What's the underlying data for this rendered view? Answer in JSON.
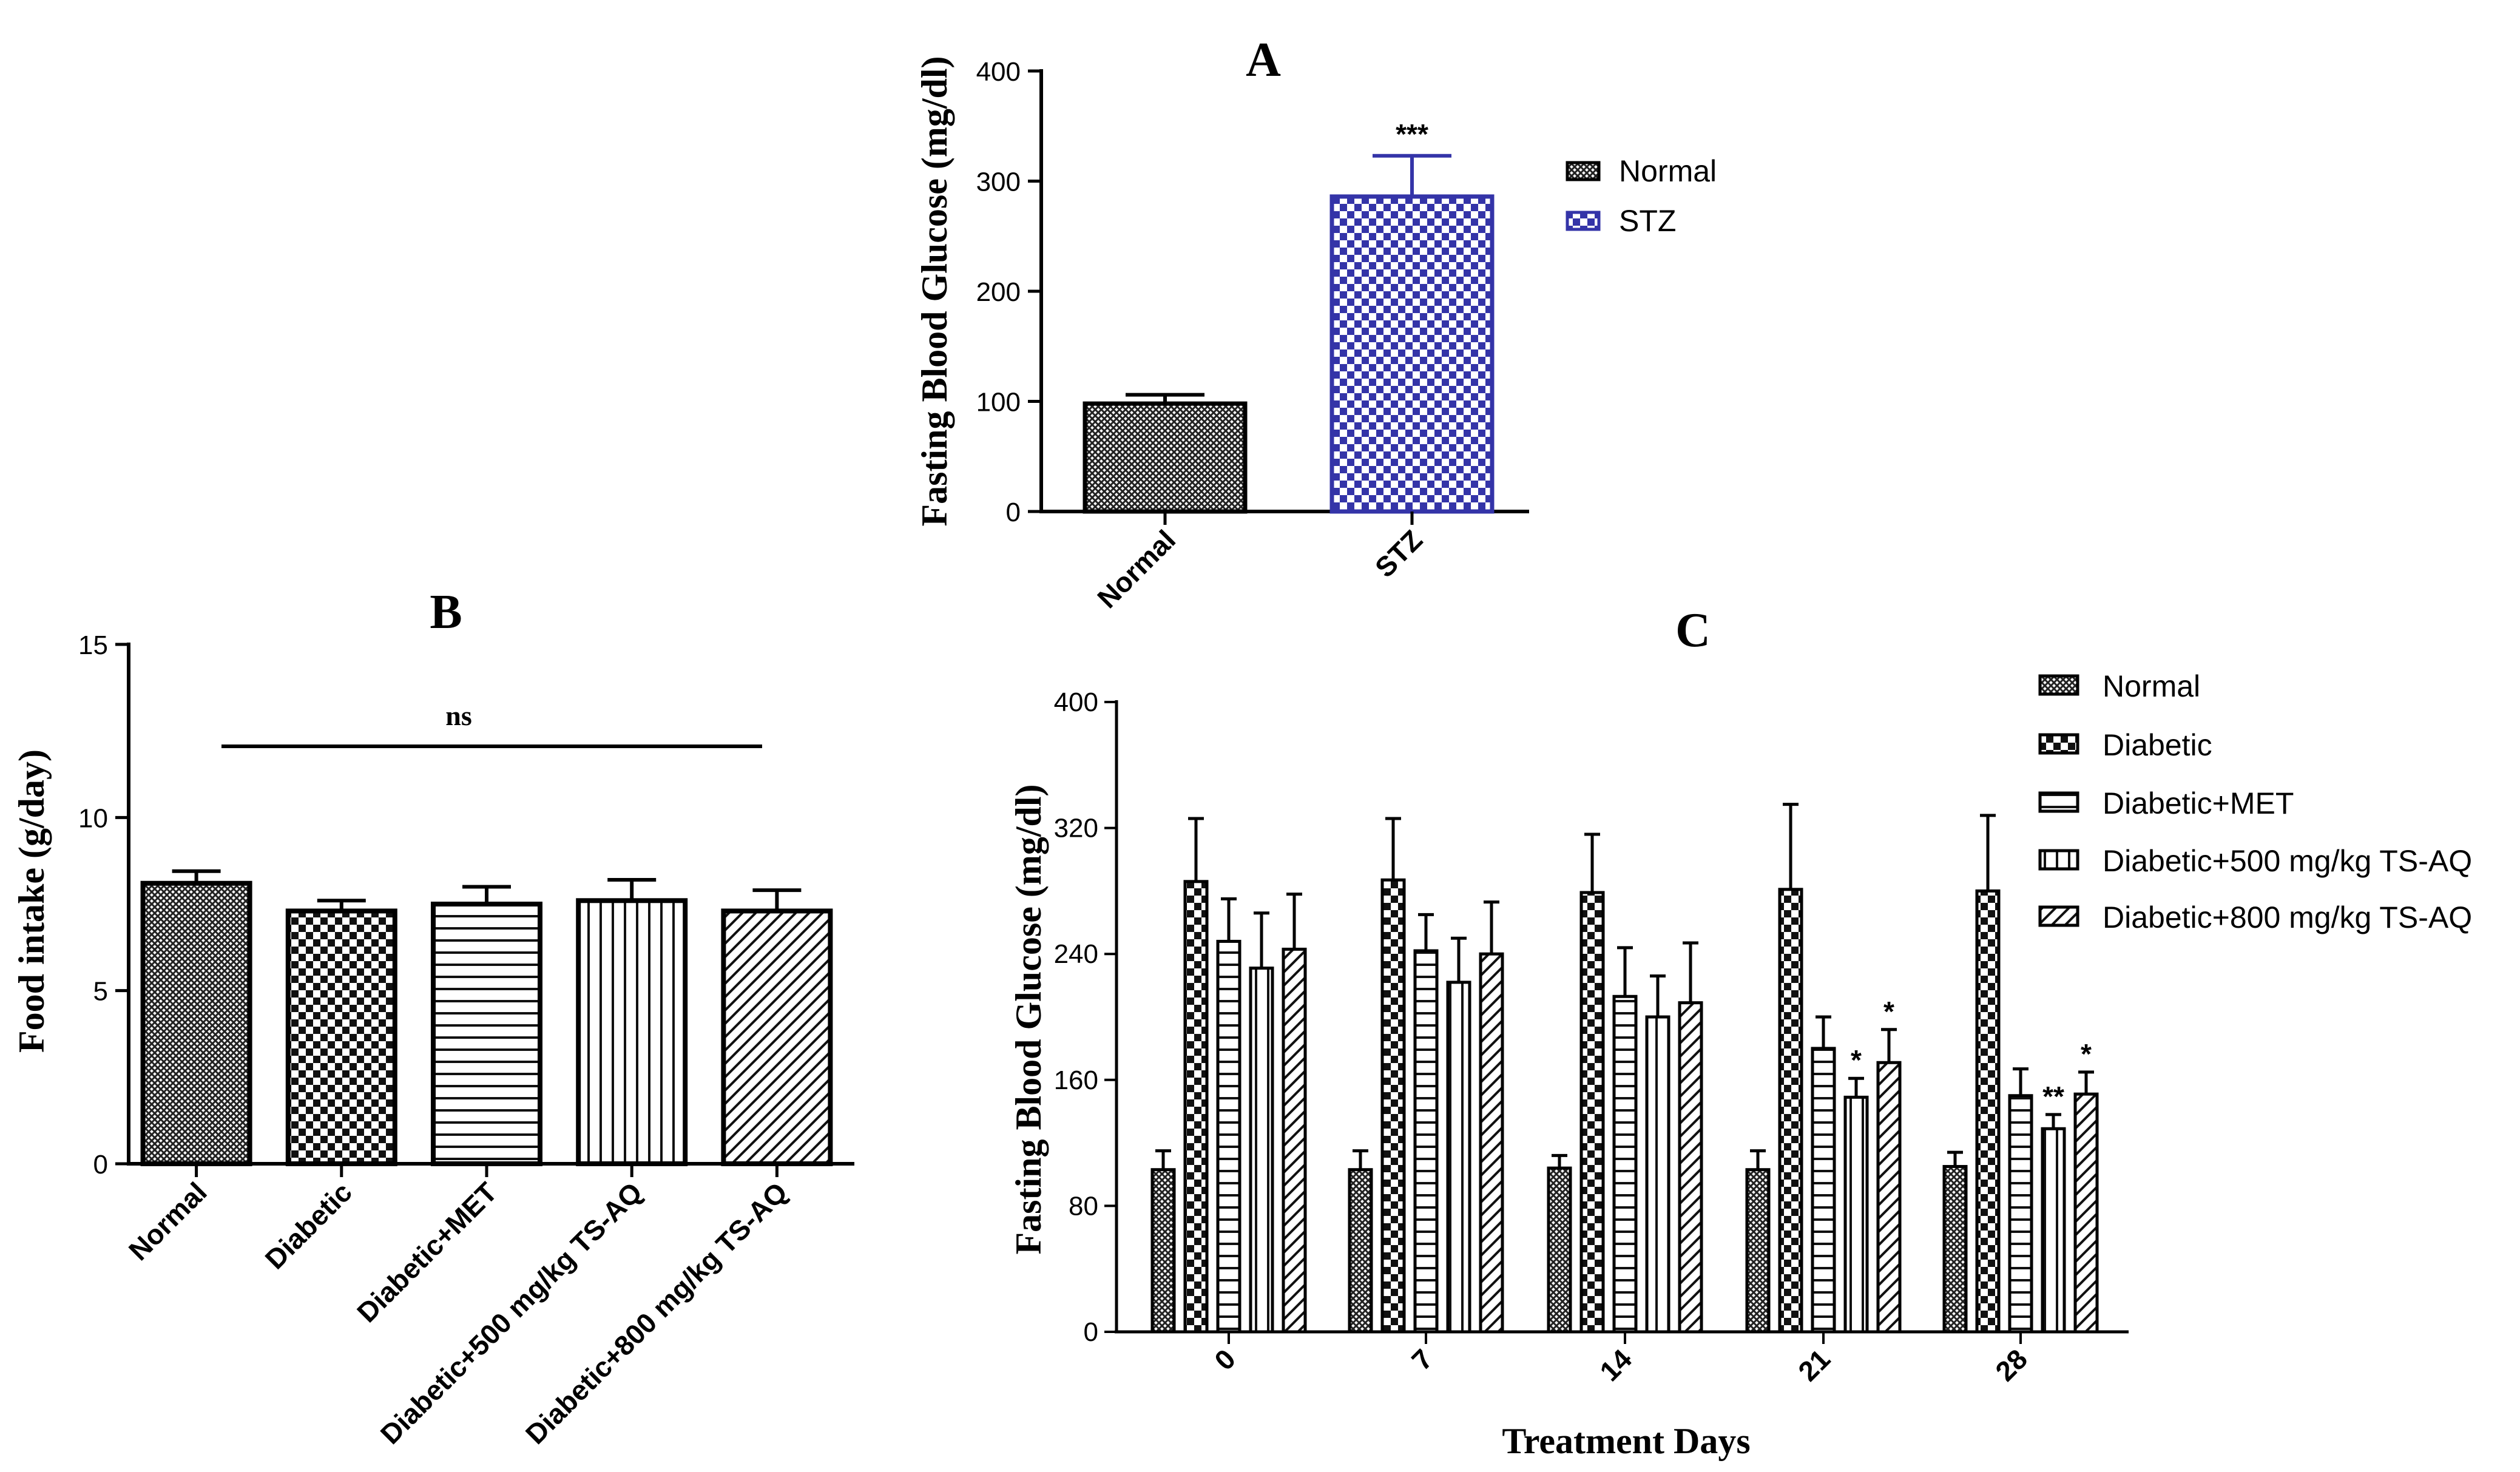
{
  "chart_data": [
    {
      "panel": "A",
      "type": "bar",
      "title": "A",
      "ylabel": "Fasting Blood Glucose (mg/dl)",
      "xlabel": "",
      "categories": [
        "Normal",
        "STZ"
      ],
      "values": [
        98,
        286
      ],
      "errors": [
        8,
        37
      ],
      "ylim": [
        0,
        400
      ],
      "yticks": [
        "0",
        "100",
        "200",
        "300",
        "400"
      ],
      "annotations": [
        "",
        "***"
      ],
      "legend": [
        {
          "name": "Normal"
        },
        {
          "name": "STZ"
        }
      ],
      "legend_position": "right"
    },
    {
      "panel": "B",
      "type": "bar",
      "title": "B",
      "ylabel": "Food intake (g/day)",
      "xlabel": "",
      "categories": [
        "Normal",
        "Diabetic",
        "Diabetic+MET",
        "Diabetic+500 mg/kg TS-AQ",
        "Diabetic+800 mg/kg TS-AQ"
      ],
      "values": [
        8.1,
        7.3,
        7.5,
        7.6,
        7.3
      ],
      "errors": [
        0.35,
        0.3,
        0.5,
        0.6,
        0.6
      ],
      "ylim": [
        0,
        15
      ],
      "yticks": [
        "0",
        "5",
        "10",
        "15"
      ],
      "annotation": "ns"
    },
    {
      "panel": "C",
      "type": "bar",
      "title": "C",
      "ylabel": "Fasting Blood Glucose (mg/dl)",
      "xlabel": "Treatment Days",
      "categories": [
        "0",
        "7",
        "14",
        "21",
        "28"
      ],
      "ylim": [
        0,
        400
      ],
      "yticks": [
        "0",
        "80",
        "160",
        "240",
        "320",
        "400"
      ],
      "legend_position": "top-right",
      "series": [
        {
          "name": "Normal",
          "values": [
            103,
            103,
            104,
            103,
            105
          ],
          "errors": [
            12,
            12,
            8,
            12,
            9
          ],
          "annotations": [
            "",
            "",
            "",
            "",
            ""
          ]
        },
        {
          "name": "Diabetic",
          "values": [
            286,
            287,
            279,
            281,
            280
          ],
          "errors": [
            40,
            39,
            37,
            54,
            48
          ],
          "annotations": [
            "",
            "",
            "",
            "",
            ""
          ]
        },
        {
          "name": "Diabetic+MET",
          "values": [
            248,
            242,
            213,
            180,
            150
          ],
          "errors": [
            27,
            23,
            31,
            20,
            17
          ],
          "annotations": [
            "",
            "",
            "",
            "",
            ""
          ]
        },
        {
          "name": "Diabetic+500 mg/kg TS-AQ",
          "values": [
            231,
            222,
            200,
            149,
            129
          ],
          "errors": [
            35,
            28,
            26,
            12,
            9
          ],
          "annotations": [
            "",
            "",
            "",
            "*",
            "**"
          ]
        },
        {
          "name": "Diabetic+800 mg/kg TS-AQ",
          "values": [
            243,
            240,
            209,
            171,
            151
          ],
          "errors": [
            35,
            33,
            38,
            21,
            14
          ],
          "annotations": [
            "",
            "",
            "",
            "*",
            "*"
          ]
        }
      ]
    }
  ]
}
